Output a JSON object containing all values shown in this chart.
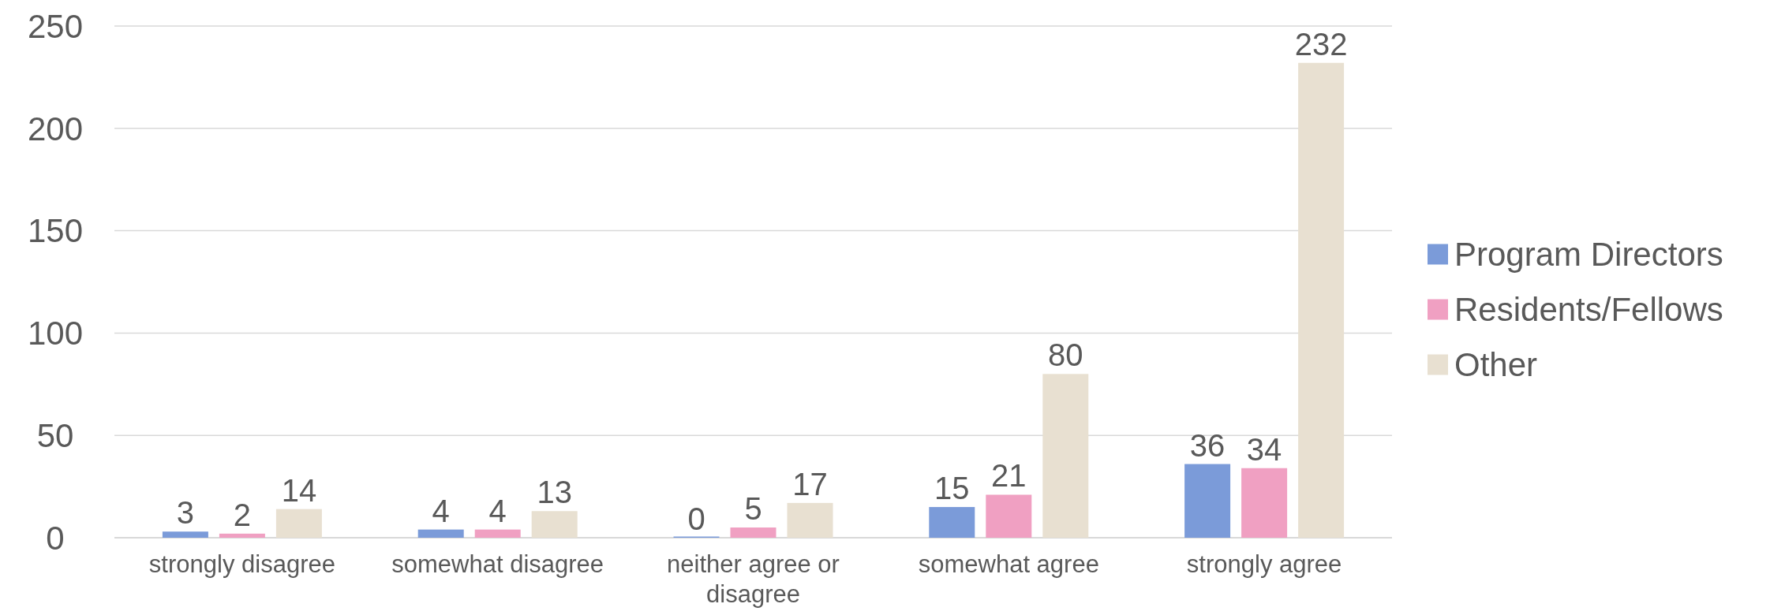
{
  "chart_data": {
    "type": "bar",
    "categories": [
      "strongly disagree",
      "somewhat disagree",
      "neither agree or disagree",
      "somewhat agree",
      "strongly agree"
    ],
    "series": [
      {
        "name": "Program Directors",
        "color": "#7b9bd9",
        "values": [
          3,
          4,
          0,
          15,
          36
        ]
      },
      {
        "name": "Residents/Fellows",
        "color": "#f0a0c2",
        "values": [
          2,
          4,
          5,
          21,
          34
        ]
      },
      {
        "name": "Other",
        "color": "#e8e0d1",
        "values": [
          14,
          13,
          17,
          80,
          232
        ]
      }
    ],
    "ylim": [
      0,
      250
    ],
    "yticks": [
      0,
      50,
      100,
      150,
      200,
      250
    ],
    "grid": "y",
    "legend": "right",
    "data_labels": true
  }
}
